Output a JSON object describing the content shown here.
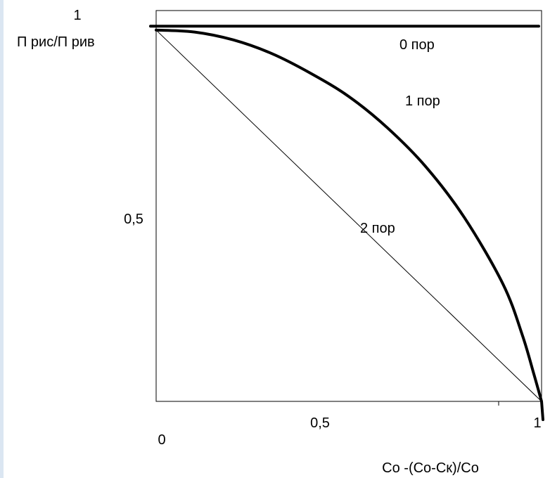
{
  "chart_data": {
    "type": "line",
    "title": "",
    "xlabel": "Co -(Co-Cк)/Co",
    "ylabel": "П рис/П рив",
    "xlim": [
      0,
      1
    ],
    "ylim": [
      0,
      1
    ],
    "x_ticks": [
      {
        "value": 0,
        "label": "0"
      },
      {
        "value": 0.5,
        "label": "0,5"
      },
      {
        "value": 1,
        "label": "1"
      }
    ],
    "y_ticks": [
      {
        "value": 0.5,
        "label": "0,5"
      },
      {
        "value": 1,
        "label": "1"
      }
    ],
    "grid": false,
    "series": [
      {
        "name": "0 пор",
        "x": [
          0,
          1
        ],
        "y": [
          0.96,
          0.96
        ]
      },
      {
        "name": "1 пор",
        "x": [
          0,
          0.1,
          0.2,
          0.3,
          0.4,
          0.5,
          0.6,
          0.7,
          0.8,
          0.9,
          0.95,
          0.98,
          1.0
        ],
        "y": [
          0.95,
          0.945,
          0.925,
          0.89,
          0.84,
          0.78,
          0.7,
          0.6,
          0.47,
          0.3,
          0.17,
          0.07,
          0.0
        ]
      },
      {
        "name": "2 пор",
        "x": [
          0,
          1
        ],
        "y": [
          0.95,
          0.0
        ]
      }
    ]
  },
  "colors": {
    "background": "#ffffff",
    "line": "#000000",
    "left_strip": "#dbe6f2"
  }
}
